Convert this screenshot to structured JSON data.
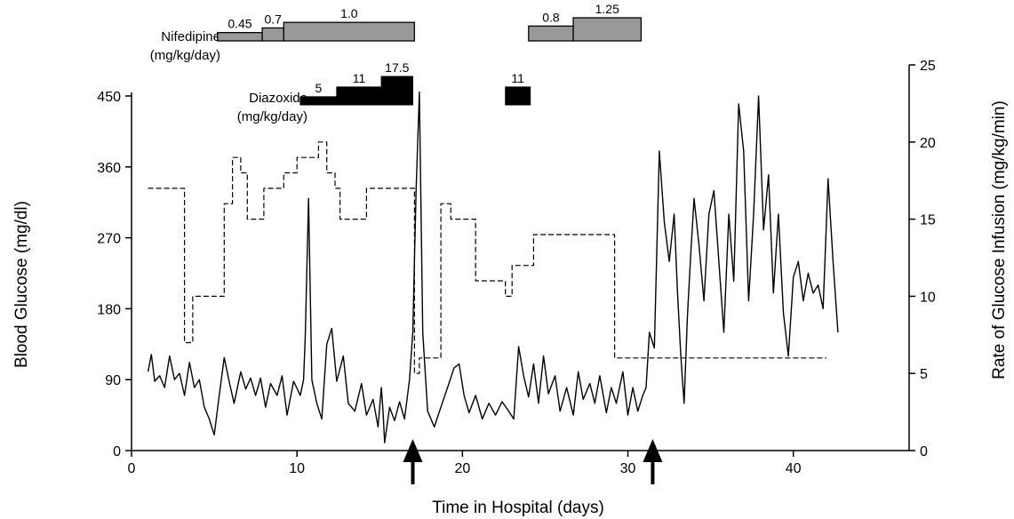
{
  "chart_data": {
    "type": "line",
    "xlabel": "Time in Hospital (days)",
    "ylabel_left": "Blood Glucose (mg/dl)",
    "ylabel_right": "Rate of Glucose Infusion (mg/kg/min)",
    "xlim": [
      0,
      47
    ],
    "ylim_left": [
      0,
      450
    ],
    "ylim_right": [
      0,
      25
    ],
    "x_ticks": [
      "0",
      "10",
      "20",
      "30",
      "40"
    ],
    "y_left_ticks": [
      "0",
      "90",
      "180",
      "270",
      "360",
      "450"
    ],
    "y_right_ticks": [
      "0",
      "5",
      "10",
      "15",
      "20",
      "25"
    ],
    "arrows_x": [
      17.0,
      31.5
    ],
    "nifedipine": {
      "label_line1": "Nifedipine",
      "label_line2": "(mg/kg/day)",
      "bars": [
        {
          "x0": 5.2,
          "x1": 7.9,
          "dose": "0.45",
          "level": 0.45
        },
        {
          "x0": 7.9,
          "x1": 9.2,
          "dose": "0.7",
          "level": 0.7
        },
        {
          "x0": 9.2,
          "x1": 17.1,
          "dose": "1.0",
          "level": 1.0
        },
        {
          "x0": 24.0,
          "x1": 26.7,
          "dose": "0.8",
          "level": 0.8
        },
        {
          "x0": 26.7,
          "x1": 30.8,
          "dose": "1.25",
          "level": 1.25
        }
      ]
    },
    "diazoxide": {
      "label_line1": "Diazoxide",
      "label_line2": "(mg/kg/day)",
      "bars": [
        {
          "x0": 10.2,
          "x1": 12.4,
          "dose": "5",
          "level": 5
        },
        {
          "x0": 12.4,
          "x1": 15.1,
          "dose": "11",
          "level": 11
        },
        {
          "x0": 15.1,
          "x1": 17.0,
          "dose": "17.5",
          "level": 17.5
        },
        {
          "x0": 22.6,
          "x1": 24.1,
          "dose": "11",
          "level": 11
        }
      ]
    },
    "series": [
      {
        "name": "",
        "axis": "right",
        "style": "dashed",
        "points": [
          [
            1.0,
            17
          ],
          [
            3.2,
            17
          ],
          [
            3.2,
            7
          ],
          [
            3.7,
            7
          ],
          [
            3.7,
            10
          ],
          [
            5.6,
            10
          ],
          [
            5.6,
            16
          ],
          [
            6.1,
            16
          ],
          [
            6.1,
            19
          ],
          [
            6.6,
            19
          ],
          [
            6.6,
            18
          ],
          [
            7.0,
            18
          ],
          [
            7.0,
            15
          ],
          [
            8.0,
            15
          ],
          [
            8.0,
            17
          ],
          [
            9.2,
            17
          ],
          [
            9.2,
            18
          ],
          [
            10.0,
            18
          ],
          [
            10.0,
            19
          ],
          [
            11.3,
            19
          ],
          [
            11.3,
            20
          ],
          [
            11.8,
            20
          ],
          [
            11.8,
            18
          ],
          [
            12.3,
            18
          ],
          [
            12.3,
            17
          ],
          [
            12.6,
            17
          ],
          [
            12.6,
            15
          ],
          [
            14.2,
            15
          ],
          [
            14.2,
            17
          ],
          [
            17.1,
            17
          ],
          [
            17.1,
            5
          ],
          [
            17.4,
            5
          ],
          [
            17.4,
            6
          ],
          [
            18.7,
            6
          ],
          [
            18.7,
            16
          ],
          [
            19.3,
            16
          ],
          [
            19.3,
            15
          ],
          [
            20.8,
            15
          ],
          [
            20.8,
            11
          ],
          [
            22.6,
            11
          ],
          [
            22.6,
            10
          ],
          [
            23.0,
            10
          ],
          [
            23.0,
            12
          ],
          [
            23.5,
            12
          ],
          [
            23.5,
            12
          ],
          [
            24.3,
            12
          ],
          [
            24.3,
            14
          ],
          [
            26.0,
            14
          ],
          [
            26.0,
            14
          ],
          [
            29.2,
            14
          ],
          [
            29.2,
            6
          ],
          [
            42.0,
            6
          ]
        ]
      },
      {
        "name": "",
        "axis": "left",
        "style": "solid",
        "points": [
          [
            1.0,
            100
          ],
          [
            1.2,
            122
          ],
          [
            1.4,
            88
          ],
          [
            1.7,
            95
          ],
          [
            2.0,
            80
          ],
          [
            2.3,
            120
          ],
          [
            2.6,
            90
          ],
          [
            2.9,
            98
          ],
          [
            3.2,
            70
          ],
          [
            3.5,
            112
          ],
          [
            3.8,
            80
          ],
          [
            4.1,
            90
          ],
          [
            4.4,
            55
          ],
          [
            4.7,
            40
          ],
          [
            5.0,
            20
          ],
          [
            5.3,
            70
          ],
          [
            5.6,
            118
          ],
          [
            5.9,
            88
          ],
          [
            6.2,
            60
          ],
          [
            6.6,
            100
          ],
          [
            6.9,
            78
          ],
          [
            7.2,
            92
          ],
          [
            7.5,
            70
          ],
          [
            7.8,
            92
          ],
          [
            8.1,
            55
          ],
          [
            8.4,
            85
          ],
          [
            8.8,
            70
          ],
          [
            9.1,
            95
          ],
          [
            9.4,
            45
          ],
          [
            9.8,
            88
          ],
          [
            10.2,
            70
          ],
          [
            10.4,
            90
          ],
          [
            10.5,
            145
          ],
          [
            10.7,
            320
          ],
          [
            10.9,
            90
          ],
          [
            11.2,
            60
          ],
          [
            11.5,
            40
          ],
          [
            11.8,
            135
          ],
          [
            12.1,
            155
          ],
          [
            12.4,
            88
          ],
          [
            12.8,
            120
          ],
          [
            13.1,
            60
          ],
          [
            13.5,
            50
          ],
          [
            13.9,
            85
          ],
          [
            14.2,
            45
          ],
          [
            14.6,
            65
          ],
          [
            14.9,
            30
          ],
          [
            15.1,
            80
          ],
          [
            15.2,
            50
          ],
          [
            15.3,
            10
          ],
          [
            15.6,
            55
          ],
          [
            15.9,
            38
          ],
          [
            16.2,
            62
          ],
          [
            16.5,
            40
          ],
          [
            16.8,
            90
          ],
          [
            17.0,
            150
          ],
          [
            17.2,
            330
          ],
          [
            17.4,
            455
          ],
          [
            17.6,
            150
          ],
          [
            17.9,
            50
          ],
          [
            18.3,
            30
          ],
          [
            18.7,
            55
          ],
          [
            19.1,
            80
          ],
          [
            19.5,
            105
          ],
          [
            19.8,
            110
          ],
          [
            20.1,
            70
          ],
          [
            20.4,
            48
          ],
          [
            20.8,
            70
          ],
          [
            21.2,
            40
          ],
          [
            21.6,
            60
          ],
          [
            22.0,
            45
          ],
          [
            22.4,
            62
          ],
          [
            22.8,
            50
          ],
          [
            23.1,
            40
          ],
          [
            23.4,
            132
          ],
          [
            23.7,
            95
          ],
          [
            24.0,
            68
          ],
          [
            24.3,
            110
          ],
          [
            24.6,
            60
          ],
          [
            24.9,
            120
          ],
          [
            25.2,
            72
          ],
          [
            25.6,
            95
          ],
          [
            25.9,
            50
          ],
          [
            26.3,
            80
          ],
          [
            26.7,
            45
          ],
          [
            27.0,
            100
          ],
          [
            27.3,
            65
          ],
          [
            27.7,
            85
          ],
          [
            28.0,
            60
          ],
          [
            28.3,
            95
          ],
          [
            28.7,
            48
          ],
          [
            29.0,
            80
          ],
          [
            29.3,
            60
          ],
          [
            29.7,
            100
          ],
          [
            30.0,
            45
          ],
          [
            30.3,
            80
          ],
          [
            30.6,
            50
          ],
          [
            30.9,
            70
          ],
          [
            31.1,
            80
          ],
          [
            31.3,
            150
          ],
          [
            31.6,
            130
          ],
          [
            31.9,
            380
          ],
          [
            32.2,
            290
          ],
          [
            32.5,
            240
          ],
          [
            32.8,
            300
          ],
          [
            33.0,
            200
          ],
          [
            33.2,
            120
          ],
          [
            33.4,
            60
          ],
          [
            33.6,
            170
          ],
          [
            33.8,
            250
          ],
          [
            34.0,
            320
          ],
          [
            34.3,
            260
          ],
          [
            34.6,
            190
          ],
          [
            34.9,
            300
          ],
          [
            35.2,
            330
          ],
          [
            35.5,
            240
          ],
          [
            35.8,
            150
          ],
          [
            36.1,
            300
          ],
          [
            36.4,
            215
          ],
          [
            36.7,
            440
          ],
          [
            37.0,
            380
          ],
          [
            37.3,
            190
          ],
          [
            37.6,
            300
          ],
          [
            37.9,
            450
          ],
          [
            38.2,
            280
          ],
          [
            38.5,
            350
          ],
          [
            38.8,
            200
          ],
          [
            39.1,
            300
          ],
          [
            39.4,
            175
          ],
          [
            39.7,
            120
          ],
          [
            40.0,
            220
          ],
          [
            40.3,
            240
          ],
          [
            40.6,
            190
          ],
          [
            40.9,
            225
          ],
          [
            41.2,
            200
          ],
          [
            41.5,
            210
          ],
          [
            41.8,
            180
          ],
          [
            42.1,
            345
          ],
          [
            42.4,
            240
          ],
          [
            42.7,
            150
          ]
        ]
      }
    ]
  }
}
